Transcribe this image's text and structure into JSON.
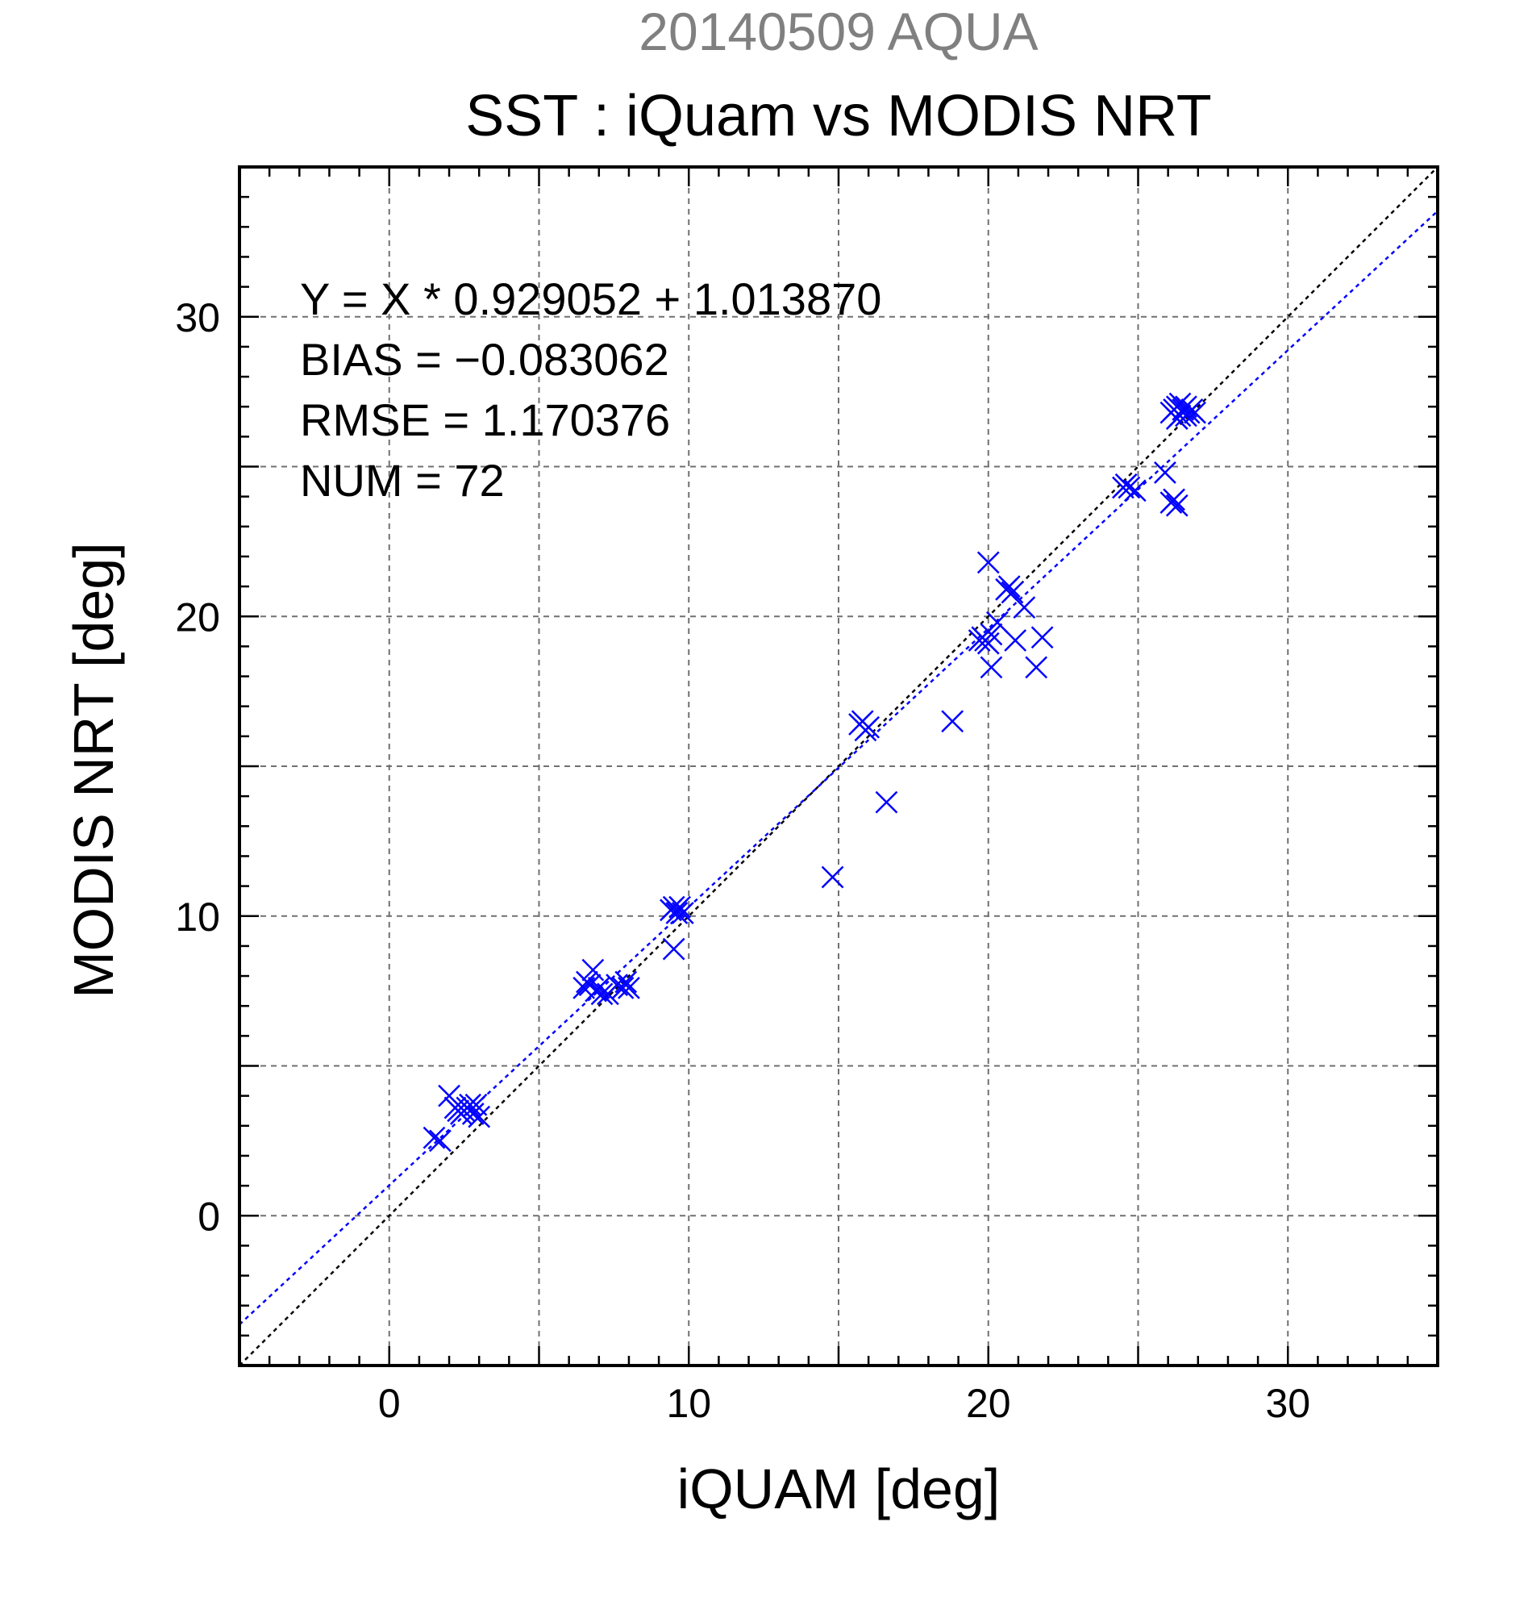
{
  "chart_data": {
    "type": "scatter",
    "title": "20140509 AQUA",
    "subtitle": "SST : iQuam vs MODIS NRT",
    "xlabel": "iQUAM [deg]",
    "ylabel": "MODIS NRT [deg]",
    "xlim": [
      -5,
      35
    ],
    "ylim": [
      -5,
      35
    ],
    "xticks": [
      0,
      10,
      20,
      30
    ],
    "yticks": [
      0,
      10,
      20,
      30
    ],
    "grid": true,
    "annotations": [
      "Y = X * 0.929052 + 1.013870",
      "BIAS = −0.083062",
      "RMSE = 1.170376",
      "NUM = 72"
    ],
    "fit": {
      "slope": 0.929052,
      "intercept": 1.01387,
      "color": "#0000ff"
    },
    "identity_line_color": "#000000",
    "marker_color": "#0000ff",
    "series": [
      {
        "marker": "x",
        "points": [
          [
            1.5,
            2.6
          ],
          [
            1.7,
            2.5
          ],
          [
            2.0,
            4.0
          ],
          [
            2.2,
            3.6
          ],
          [
            2.4,
            3.4
          ],
          [
            2.5,
            3.5
          ],
          [
            2.6,
            3.6
          ],
          [
            2.7,
            3.7
          ],
          [
            2.8,
            3.4
          ],
          [
            2.9,
            3.7
          ],
          [
            3.0,
            3.3
          ],
          [
            2.3,
            3.5
          ],
          [
            6.5,
            7.6
          ],
          [
            6.7,
            7.7
          ],
          [
            6.8,
            8.2
          ],
          [
            6.9,
            7.5
          ],
          [
            7.0,
            7.6
          ],
          [
            7.1,
            7.4
          ],
          [
            7.3,
            7.4
          ],
          [
            7.6,
            7.7
          ],
          [
            7.8,
            7.6
          ],
          [
            7.9,
            7.8
          ],
          [
            8.0,
            7.6
          ],
          [
            6.6,
            7.8
          ],
          [
            9.4,
            10.2
          ],
          [
            9.5,
            10.3
          ],
          [
            9.6,
            10.1
          ],
          [
            9.7,
            10.3
          ],
          [
            9.8,
            10.1
          ],
          [
            9.5,
            8.9
          ],
          [
            14.8,
            11.3
          ],
          [
            15.7,
            16.4
          ],
          [
            15.8,
            16.5
          ],
          [
            15.9,
            16.2
          ],
          [
            16.0,
            16.3
          ],
          [
            16.6,
            13.8
          ],
          [
            18.8,
            16.5
          ],
          [
            19.8,
            19.3
          ],
          [
            19.9,
            19.2
          ],
          [
            20.0,
            19.1
          ],
          [
            20.0,
            21.8
          ],
          [
            20.1,
            19.4
          ],
          [
            20.1,
            18.3
          ],
          [
            20.3,
            19.8
          ],
          [
            20.6,
            20.9
          ],
          [
            20.7,
            21.0
          ],
          [
            20.8,
            20.8
          ],
          [
            20.9,
            19.2
          ],
          [
            21.2,
            20.3
          ],
          [
            21.6,
            18.3
          ],
          [
            21.8,
            19.3
          ],
          [
            19.7,
            19.2
          ],
          [
            24.5,
            24.3
          ],
          [
            24.6,
            24.4
          ],
          [
            24.7,
            24.3
          ],
          [
            24.9,
            24.2
          ],
          [
            25.9,
            24.8
          ],
          [
            26.1,
            23.8
          ],
          [
            26.2,
            23.9
          ],
          [
            26.3,
            23.7
          ],
          [
            26.1,
            26.8
          ],
          [
            26.2,
            26.9
          ],
          [
            26.3,
            27.0
          ],
          [
            26.4,
            26.7
          ],
          [
            26.5,
            26.9
          ],
          [
            26.6,
            27.0
          ],
          [
            26.7,
            26.8
          ],
          [
            26.8,
            26.9
          ],
          [
            26.4,
            27.1
          ],
          [
            26.6,
            26.7
          ],
          [
            26.9,
            26.8
          ],
          [
            26.3,
            26.6
          ]
        ]
      }
    ]
  }
}
